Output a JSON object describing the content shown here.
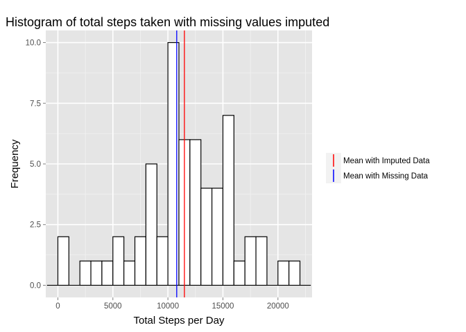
{
  "chart_data": {
    "type": "bar",
    "title": "Histogram of total steps taken with missing values imputed",
    "xlabel": "Total Steps per Day",
    "ylabel": "Frequency",
    "xlim": [
      -1100,
      23100
    ],
    "ylim": [
      -0.5,
      10.5
    ],
    "x_ticks": [
      0,
      5000,
      10000,
      15000,
      20000
    ],
    "x_tick_labels": [
      "0",
      "5000",
      "10000",
      "15000",
      "20000"
    ],
    "y_ticks": [
      0,
      2.5,
      5,
      7.5,
      10
    ],
    "y_tick_labels": [
      "0.0",
      "2.5",
      "5.0",
      "7.5",
      "10.0"
    ],
    "bin_width": 1000,
    "x_minor_ticks": [
      2500,
      7500,
      12500,
      17500,
      22500
    ],
    "y_minor_ticks": [
      1.25,
      3.75,
      6.25,
      8.75
    ],
    "bins": [
      {
        "center": -500,
        "count": 0
      },
      {
        "center": 500,
        "count": 2
      },
      {
        "center": 1500,
        "count": 0
      },
      {
        "center": 2500,
        "count": 1
      },
      {
        "center": 3500,
        "count": 1
      },
      {
        "center": 4500,
        "count": 1
      },
      {
        "center": 5500,
        "count": 2
      },
      {
        "center": 6500,
        "count": 1
      },
      {
        "center": 7500,
        "count": 2
      },
      {
        "center": 8500,
        "count": 5
      },
      {
        "center": 9500,
        "count": 2
      },
      {
        "center": 10500,
        "count": 10
      },
      {
        "center": 11500,
        "count": 6
      },
      {
        "center": 12500,
        "count": 6
      },
      {
        "center": 13500,
        "count": 4
      },
      {
        "center": 14500,
        "count": 4
      },
      {
        "center": 15500,
        "count": 7
      },
      {
        "center": 16500,
        "count": 1
      },
      {
        "center": 17500,
        "count": 2
      },
      {
        "center": 18500,
        "count": 2
      },
      {
        "center": 19500,
        "count": 0
      },
      {
        "center": 20500,
        "count": 1
      },
      {
        "center": 21500,
        "count": 1
      },
      {
        "center": 22500,
        "count": 0
      }
    ],
    "vlines": [
      {
        "name": "Mean with Imputed Data",
        "x": 11500,
        "color": "#ff0000"
      },
      {
        "name": "Mean with Missing Data",
        "x": 10800,
        "color": "#0000ff"
      }
    ],
    "grid": true,
    "legend_position": "right",
    "colors": {
      "panel_bg": "#e5e5e5",
      "grid_major": "#ffffff",
      "grid_minor": "#f2f2f2",
      "bar_fill": "#ffffff",
      "bar_stroke": "#000000",
      "legend_key_bg": "#f2f2f2"
    }
  }
}
